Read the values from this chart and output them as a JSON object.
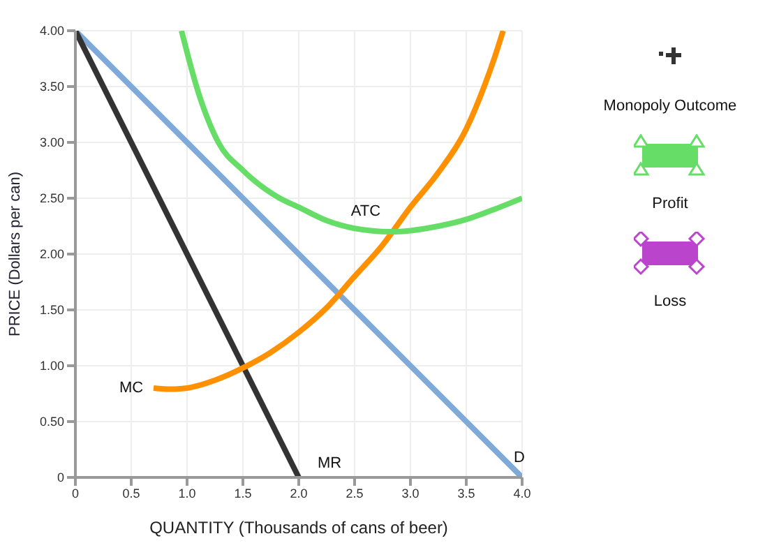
{
  "chart_data": {
    "type": "line",
    "xlabel": "QUANTITY (Thousands of cans of beer)",
    "ylabel": "PRICE (Dollars per can)",
    "xlim": [
      0,
      4
    ],
    "ylim": [
      0,
      4
    ],
    "xticks": [
      {
        "value": 0,
        "label": "0"
      },
      {
        "value": 0.5,
        "label": "0.5"
      },
      {
        "value": 1,
        "label": "1.0"
      },
      {
        "value": 1.5,
        "label": "1.5"
      },
      {
        "value": 2,
        "label": "2.0"
      },
      {
        "value": 2.5,
        "label": "2.5"
      },
      {
        "value": 3,
        "label": "3.0"
      },
      {
        "value": 3.5,
        "label": "3.5"
      },
      {
        "value": 4,
        "label": "4.0"
      }
    ],
    "yticks": [
      {
        "value": 0,
        "label": "0"
      },
      {
        "value": 0.5,
        "label": "0.50"
      },
      {
        "value": 1,
        "label": "1.00"
      },
      {
        "value": 1.5,
        "label": "1.50"
      },
      {
        "value": 2,
        "label": "2.00"
      },
      {
        "value": 2.5,
        "label": "2.50"
      },
      {
        "value": 3,
        "label": "3.00"
      },
      {
        "value": 3.5,
        "label": "3.50"
      },
      {
        "value": 4,
        "label": "4.00"
      }
    ],
    "grid": true,
    "marker": "none",
    "line_style": "solid",
    "series": [
      {
        "name": "D",
        "color": "#7fa9d6",
        "x": [
          0,
          4
        ],
        "values": [
          4,
          0
        ]
      },
      {
        "name": "MR",
        "color": "#333333",
        "x": [
          0,
          2
        ],
        "values": [
          4,
          0
        ]
      },
      {
        "name": "MC",
        "color": "#ff9100",
        "x": [
          0.7,
          0.85,
          1.0,
          1.25,
          1.5,
          1.75,
          2.0,
          2.25,
          2.5,
          2.75,
          3.0,
          3.25,
          3.5,
          3.66,
          3.75,
          3.83
        ],
        "values": [
          0.8,
          0.79,
          0.8,
          0.87,
          0.98,
          1.12,
          1.3,
          1.52,
          1.8,
          2.08,
          2.42,
          2.73,
          3.12,
          3.5,
          3.75,
          4.0
        ]
      },
      {
        "name": "ATC",
        "color": "#66dd66",
        "x": [
          0.95,
          1.1,
          1.28,
          1.5,
          1.83,
          2.0,
          2.25,
          2.5,
          2.82,
          3.0,
          3.25,
          3.5,
          3.75,
          4.0
        ],
        "values": [
          4.0,
          3.45,
          3.0,
          2.75,
          2.5,
          2.42,
          2.3,
          2.23,
          2.2,
          2.21,
          2.25,
          2.31,
          2.4,
          2.5
        ]
      }
    ],
    "annotations": [
      "Monopoly Outcome",
      "Profit",
      "Loss"
    ]
  }
}
